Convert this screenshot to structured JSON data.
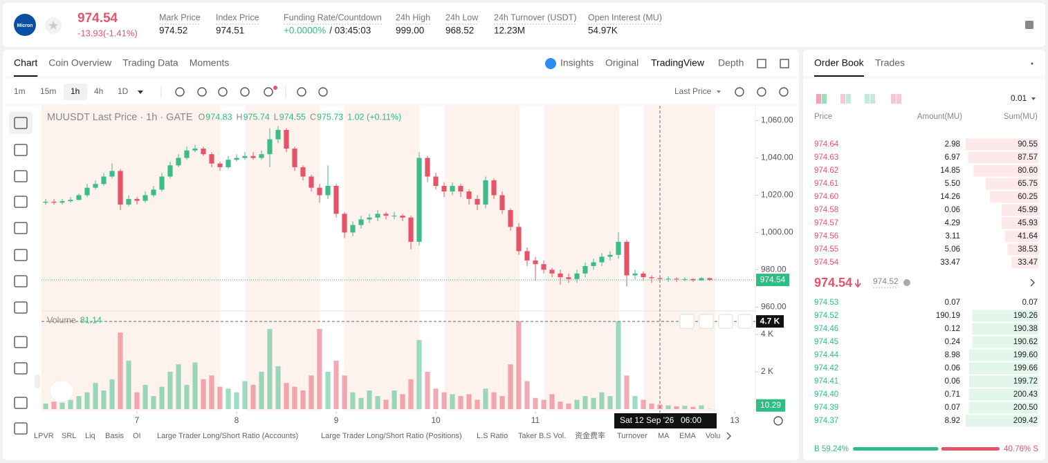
{
  "header": {
    "logo": "Micron",
    "price": "974.54",
    "change": "-13.93(-1.41%)",
    "stats": [
      {
        "label": "Mark Price",
        "value": "974.52"
      },
      {
        "label": "Index Price",
        "value": "974.51"
      },
      {
        "label": "Funding Rate/Countdown",
        "value": "+0.0000%",
        "extra": "/ 03:45:03"
      },
      {
        "label": "24h High",
        "value": "999.00"
      },
      {
        "label": "24h Low",
        "value": "968.52"
      },
      {
        "label": "24h Turnover (USDT)",
        "value": "12.23M"
      },
      {
        "label": "Open Interest (MU)",
        "value": "54.97K"
      }
    ]
  },
  "tabs": [
    "Chart",
    "Coin Overview",
    "Trading Data",
    "Moments"
  ],
  "views": [
    "Insights",
    "Original",
    "TradingView",
    "Depth"
  ],
  "intervals": [
    "1m",
    "15m",
    "1h",
    "4h",
    "1D"
  ],
  "price_source": "Last Price",
  "indicators": [
    "LPVR",
    "SRL",
    "Liq",
    "Basis",
    "OI",
    "Large Trader Long/Short Ratio (Accounts)",
    "Large Trader Long/Short Ratio (Positions)",
    "L.S Ratio",
    "Taker B.S Vol.",
    "资金费率",
    "Turnover",
    "MA",
    "EMA",
    "Volu"
  ],
  "chart_data": {
    "type": "candlestick",
    "title": "MUUSDT Last Price · 1h · GATE",
    "ohlc_legend": [
      {
        "key": "O",
        "value": "974.83"
      },
      {
        "key": "H",
        "value": "975.74"
      },
      {
        "key": "L",
        "value": "974.55"
      },
      {
        "key": "C",
        "value": "975.73"
      }
    ],
    "change_legend": "1.02 (+0.11%)",
    "open": [
      1016,
      1016.5,
      1016,
      1016.8,
      1017.5,
      1020,
      1024,
      1026,
      1030,
      1033,
      1015,
      1018,
      1017,
      1020,
      1023,
      1030,
      1036,
      1040,
      1044,
      1045,
      1042,
      1037,
      1035,
      1039,
      1040,
      1041,
      1040,
      1042,
      1050,
      1055,
      1045,
      1035,
      1030,
      1024,
      1020,
      1025,
      1010,
      1000,
      1004,
      1007,
      1008,
      1010,
      1009,
      1009,
      1008,
      995,
      1040,
      1030,
      1025,
      1022,
      1025,
      1022,
      1018,
      1015,
      1028,
      1020,
      1012,
      1003,
      990,
      985,
      983,
      980,
      978,
      976,
      975,
      978,
      982,
      984,
      987,
      988,
      995,
      977,
      978,
      976,
      975.5,
      975,
      975.2,
      974.8,
      975,
      974.3,
      975.5
    ],
    "high": [
      1018,
      1018,
      1018,
      1019,
      1021,
      1026,
      1028,
      1032,
      1037,
      1034,
      1020,
      1019,
      1022,
      1025,
      1032,
      1038,
      1042,
      1046,
      1047,
      1046,
      1043,
      1038,
      1041,
      1042,
      1043,
      1043,
      1044,
      1056,
      1057,
      1056,
      1046,
      1036,
      1031,
      1026,
      1036,
      1026,
      1011,
      1006,
      1009,
      1010,
      1012,
      1011,
      1011,
      1010,
      1009,
      1043,
      1041,
      1032,
      1027,
      1027,
      1026,
      1023,
      1020,
      1030,
      1029,
      1022,
      1013,
      1005,
      992,
      987,
      985,
      981,
      980,
      978,
      980,
      984,
      986,
      989,
      990,
      1000,
      996,
      980,
      979,
      977,
      977,
      976.5,
      976,
      976,
      975.5,
      976,
      975.8
    ],
    "low": [
      1015,
      1015,
      1015,
      1016,
      1017,
      1019,
      1023,
      1025,
      1029,
      1012,
      1014,
      1015,
      1016,
      1019,
      1022,
      1029,
      1035,
      1039,
      1043,
      1041,
      1035,
      1033,
      1034,
      1038,
      1039,
      1039,
      1039,
      1035,
      1048,
      1043,
      1033,
      1028,
      1022,
      1016,
      1018,
      1008,
      997,
      998,
      1002,
      1005,
      1006,
      1007,
      1007,
      1006,
      991,
      993,
      1027,
      1023,
      1019,
      1020,
      1019,
      1015,
      1012,
      1013,
      1018,
      1010,
      1001,
      988,
      982,
      974,
      978,
      976,
      972,
      973,
      973,
      976,
      980,
      982,
      985,
      986,
      971,
      975,
      974,
      973,
      973,
      973.5,
      973.5,
      973.8,
      973.5,
      974,
      974
    ],
    "close": [
      1016.5,
      1016,
      1016.8,
      1017.5,
      1020,
      1024,
      1026,
      1030,
      1033,
      1015,
      1018,
      1017,
      1020,
      1023,
      1030,
      1036,
      1040,
      1044,
      1045,
      1042,
      1037,
      1035,
      1039,
      1040,
      1041,
      1040,
      1042,
      1050,
      1055,
      1045,
      1035,
      1030,
      1024,
      1020,
      1025,
      1010,
      1000,
      1004,
      1007,
      1008,
      1010,
      1009,
      1009,
      1008,
      995,
      1040,
      1030,
      1025,
      1022,
      1025,
      1022,
      1018,
      1015,
      1028,
      1020,
      1012,
      1003,
      990,
      985,
      983,
      980,
      978,
      976,
      975,
      978,
      982,
      984,
      987,
      988,
      995,
      977,
      978,
      976,
      975.5,
      975,
      975.2,
      974.8,
      975,
      974.3,
      975.5,
      974.54
    ],
    "up_color": "#3dbb8a",
    "down_color": "#e5556a",
    "xlim": [
      -0.5,
      85.5
    ],
    "xticks": [
      {
        "value": 11,
        "label": "7"
      },
      {
        "value": 23,
        "label": "8"
      },
      {
        "value": 35,
        "label": "9"
      },
      {
        "value": 47,
        "label": "10"
      },
      {
        "value": 59,
        "label": "11"
      },
      {
        "value": 83,
        "label": "13"
      }
    ],
    "ylim": [
      959,
      1068
    ],
    "yticks": [
      {
        "value": 960,
        "label": "960.00"
      },
      {
        "value": 980,
        "label": "980.00"
      },
      {
        "value": 1000,
        "label": "1,000.00"
      },
      {
        "value": 1020,
        "label": "1,020.00"
      },
      {
        "value": 1040,
        "label": "1,040.00"
      },
      {
        "value": 1060,
        "label": "1,060.00"
      }
    ],
    "last_price": 974.54,
    "crosshair": {
      "x": 74,
      "date": "Sat 12 Sep '26",
      "time": "06:00"
    },
    "volume": {
      "name": "Volume",
      "legend_value": "81.14",
      "values": [
        300,
        400,
        350,
        500,
        700,
        900,
        1400,
        1000,
        1600,
        4100,
        2600,
        900,
        1300,
        700,
        1200,
        2000,
        2400,
        1300,
        2500,
        1600,
        1800,
        1200,
        1100,
        900,
        1500,
        1300,
        2000,
        4300,
        2300,
        1400,
        1200,
        1000,
        1800,
        4300,
        2000,
        2600,
        1800,
        900,
        600,
        1000,
        700,
        500,
        1000,
        800,
        1600,
        3700,
        2000,
        1100,
        900,
        800,
        700,
        800,
        500,
        1100,
        900,
        700,
        2400,
        4700,
        1500,
        600,
        500,
        800,
        400,
        300,
        500,
        700,
        600,
        900,
        700,
        4700,
        1800,
        700,
        500,
        300,
        250,
        200,
        150,
        180,
        120,
        200,
        10.29
      ],
      "ylim": [
        0,
        5000
      ],
      "yticks": [
        {
          "value": 2000,
          "label": "2 K"
        },
        {
          "value": 4000,
          "label": "4 K"
        }
      ],
      "marker": {
        "value": 4700,
        "label": "4.7 K"
      }
    }
  },
  "order_book": {
    "tabs": [
      "Order Book",
      "Trades"
    ],
    "precision": "0.01",
    "columns": [
      "Price",
      "Amount(MU)",
      "Sum(MU)"
    ],
    "asks": [
      [
        "974.64",
        "2.98",
        "90.55"
      ],
      [
        "974.63",
        "6.97",
        "87.57"
      ],
      [
        "974.62",
        "14.85",
        "80.60"
      ],
      [
        "974.61",
        "5.50",
        "65.75"
      ],
      [
        "974.60",
        "14.26",
        "60.25"
      ],
      [
        "974.58",
        "0.06",
        "45.99"
      ],
      [
        "974.57",
        "4.29",
        "45.93"
      ],
      [
        "974.56",
        "3.11",
        "41.64"
      ],
      [
        "974.55",
        "5.06",
        "38.53"
      ],
      [
        "974.54",
        "33.47",
        "33.47"
      ]
    ],
    "mid_price": "974.54",
    "mark_price": "974.52",
    "bids": [
      [
        "974.53",
        "0.07",
        "0.07"
      ],
      [
        "974.52",
        "190.19",
        "190.26"
      ],
      [
        "974.46",
        "0.12",
        "190.38"
      ],
      [
        "974.45",
        "0.24",
        "190.62"
      ],
      [
        "974.44",
        "8.98",
        "199.60"
      ],
      [
        "974.42",
        "0.06",
        "199.66"
      ],
      [
        "974.41",
        "0.06",
        "199.72"
      ],
      [
        "974.40",
        "0.71",
        "200.43"
      ],
      [
        "974.39",
        "0.07",
        "200.50"
      ],
      [
        "974.37",
        "8.92",
        "209.42"
      ]
    ],
    "ratio": {
      "values": [
        59.24,
        40.76
      ],
      "value_labels": [
        "B 59.24%",
        "40.76% S"
      ]
    }
  }
}
